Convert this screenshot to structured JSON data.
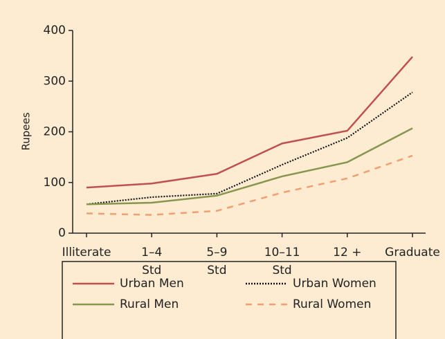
{
  "chart_data": {
    "type": "line",
    "y_label": "Rupees",
    "categories": [
      [
        "Illiterate"
      ],
      [
        "1–4",
        "Std"
      ],
      [
        "5–9",
        "Std"
      ],
      [
        "10–11",
        "Std"
      ],
      [
        "12 +"
      ],
      [
        "Graduate"
      ]
    ],
    "series": [
      {
        "name": "Urban Men",
        "color": "#c0504d",
        "dash": "solid",
        "values": [
          90,
          98,
          117,
          177,
          202,
          348
        ]
      },
      {
        "name": "Urban Women",
        "color": "#111111",
        "dash": "dotted",
        "values": [
          57,
          71,
          78,
          135,
          188,
          278
        ]
      },
      {
        "name": "Rural Men",
        "color": "#86964f",
        "dash": "solid",
        "values": [
          57,
          60,
          74,
          112,
          140,
          207
        ]
      },
      {
        "name": "Rural Women",
        "color": "#f0a070",
        "dash": "dashed",
        "values": [
          39,
          36,
          44,
          80,
          108,
          153
        ]
      }
    ],
    "ylim": [
      0,
      400
    ],
    "yticks": [
      0,
      100,
      200,
      300,
      400
    ],
    "grid": false,
    "legend": "bottom"
  }
}
